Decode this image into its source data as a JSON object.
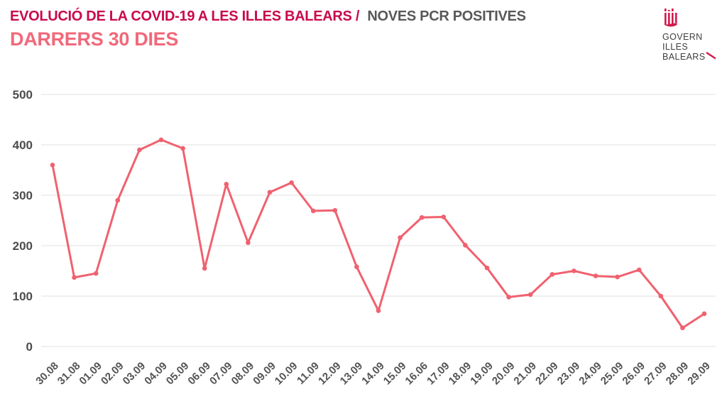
{
  "header": {
    "title_primary": "EVOLUCIÓ DE LA COVID-19 A LES ILLES BALEARS /",
    "title_secondary": "NOVES PCR POSITIVES",
    "subtitle": "DARRERS 30 DIES"
  },
  "logo": {
    "icon": "coat-of-arms-icon",
    "lines": [
      "GOVERN",
      "ILLES",
      "BALEARS"
    ]
  },
  "colors": {
    "line": "#f0616f",
    "marker": "#f0616f",
    "title_primary": "#c9094d",
    "title_secondary": "#58585a",
    "subtitle": "#f0697a",
    "gridline": "#ebebeb",
    "y_tick_label": "#4c4c4e",
    "x_tick_label": "#545456",
    "logo_accent": "#d11a4c",
    "logo_text": "#3e3e40"
  },
  "chart_data": {
    "type": "line",
    "title": "EVOLUCIÓ DE LA COVID-19 A LES ILLES BALEARS / NOVES PCR POSITIVES",
    "subtitle": "DARRERS 30 DIES",
    "xlabel": "",
    "ylabel": "",
    "ylim": [
      0,
      500
    ],
    "yticks": [
      0,
      100,
      200,
      300,
      400,
      500
    ],
    "grid": true,
    "legend": false,
    "categories": [
      "30.08",
      "31.08",
      "01.09",
      "02.09",
      "03.09",
      "04.09",
      "05.09",
      "06.09",
      "07.09",
      "08.09",
      "09.09",
      "10.09",
      "11.09",
      "12.09",
      "13.09",
      "14.09",
      "15.09",
      "16.06",
      "17.09",
      "18.09",
      "19.09",
      "20.09",
      "21.09",
      "22.09",
      "23.09",
      "24.09",
      "25.09",
      "26.09",
      "27.09",
      "28.09",
      "29.09"
    ],
    "values": [
      360,
      137,
      145,
      290,
      390,
      410,
      393,
      155,
      322,
      206,
      306,
      325,
      269,
      270,
      158,
      71,
      216,
      256,
      257,
      201,
      156,
      98,
      103,
      143,
      150,
      140,
      138,
      152,
      100,
      37,
      65
    ]
  }
}
